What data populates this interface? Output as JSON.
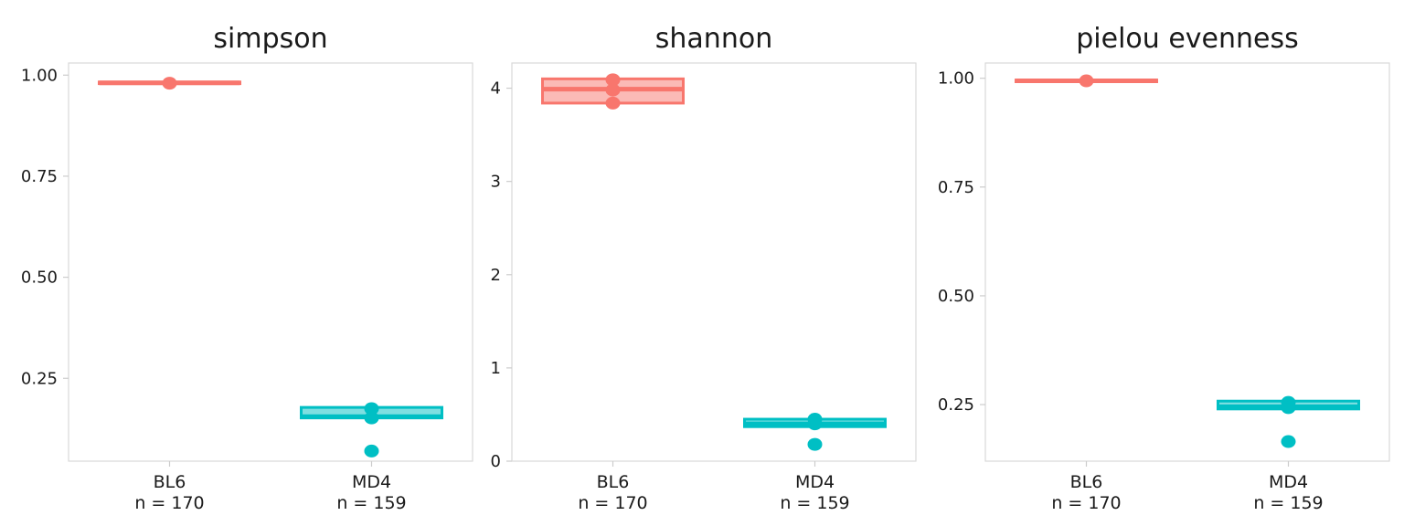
{
  "chart_data": [
    {
      "type": "box",
      "title": "simpson",
      "xlabel": "",
      "ylabel": "",
      "ylim": [
        0.045,
        1.03
      ],
      "yticks": [
        0.25,
        0.5,
        0.75,
        1.0
      ],
      "ytick_labels": [
        "0.25",
        "0.50",
        "0.75",
        "1.00"
      ],
      "grid": false,
      "groups": [
        {
          "name": "BL6",
          "n_label": "n = 170",
          "color": "#F8766D",
          "q1": 0.979,
          "median": 0.981,
          "q3": 0.983,
          "points": [
            0.98
          ]
        },
        {
          "name": "MD4",
          "n_label": "n = 159",
          "color": "#00BFC4",
          "q1": 0.152,
          "median": 0.155,
          "q3": 0.178,
          "points": [
            0.175,
            0.152,
            0.07
          ]
        }
      ]
    },
    {
      "type": "box",
      "title": "shannon",
      "xlabel": "",
      "ylabel": "",
      "ylim": [
        0,
        4.27
      ],
      "yticks": [
        0,
        1,
        2,
        3,
        4
      ],
      "ytick_labels": [
        "0",
        "1",
        "2",
        "3",
        "4"
      ],
      "grid": false,
      "groups": [
        {
          "name": "BL6",
          "n_label": "n = 170",
          "color": "#F8766D",
          "q1": 3.84,
          "median": 3.99,
          "q3": 4.1,
          "points": [
            4.09,
            3.98,
            3.84
          ]
        },
        {
          "name": "MD4",
          "n_label": "n = 159",
          "color": "#00BFC4",
          "q1": 0.37,
          "median": 0.4,
          "q3": 0.45,
          "points": [
            0.45,
            0.4,
            0.18
          ]
        }
      ]
    },
    {
      "type": "box",
      "title": "pielou evenness",
      "xlabel": "",
      "ylabel": "",
      "ylim": [
        0.12,
        1.035
      ],
      "yticks": [
        0.25,
        0.5,
        0.75,
        1.0
      ],
      "ytick_labels": [
        "0.25",
        "0.50",
        "0.75",
        "1.00"
      ],
      "grid": false,
      "groups": [
        {
          "name": "BL6",
          "n_label": "n = 170",
          "color": "#F8766D",
          "q1": 0.992,
          "median": 0.994,
          "q3": 0.996,
          "points": [
            0.994
          ]
        },
        {
          "name": "MD4",
          "n_label": "n = 159",
          "color": "#00BFC4",
          "q1": 0.24,
          "median": 0.245,
          "q3": 0.258,
          "points": [
            0.255,
            0.243,
            0.165
          ]
        }
      ]
    }
  ]
}
